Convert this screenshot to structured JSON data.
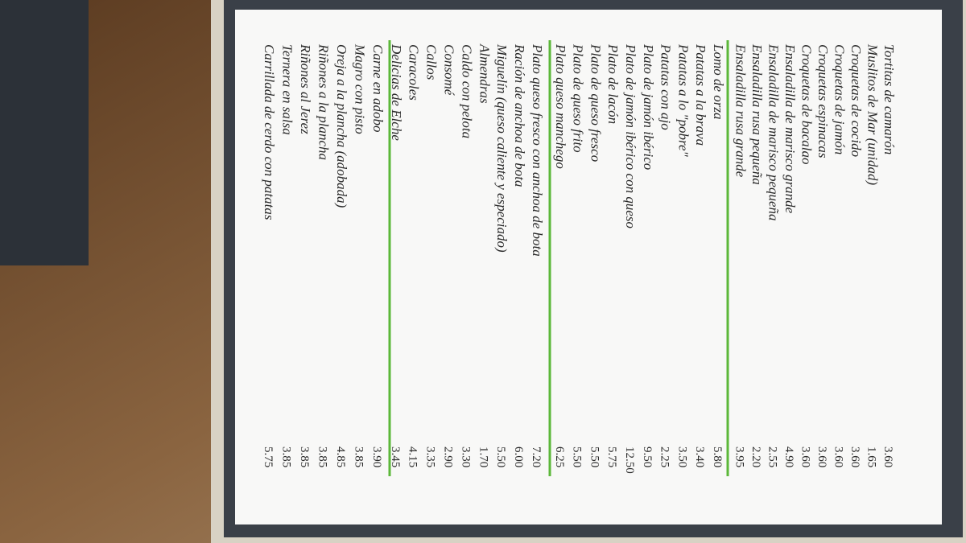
{
  "menu": {
    "sections": [
      {
        "items": [
          {
            "name": "Tortitas de camarón",
            "price": "3.60"
          },
          {
            "name": "Muslitos de Mar (unidad)",
            "price": "1.65"
          },
          {
            "name": "Croquetas de cocido",
            "price": "3.60"
          },
          {
            "name": "Croquetas de jamón",
            "price": "3.60"
          },
          {
            "name": "Croquetas espinacas",
            "price": "3.60"
          },
          {
            "name": "Croquetas de bacalao",
            "price": "3.60"
          },
          {
            "name": "Ensaladilla de marisco grande",
            "price": "4.90"
          },
          {
            "name": "Ensaladilla de marisco pequeña",
            "price": "2.55"
          },
          {
            "name": "Ensaladilla rusa pequeña",
            "price": "2.20"
          },
          {
            "name": "Ensaladilla rusa grande",
            "price": "3.95"
          }
        ]
      },
      {
        "items": [
          {
            "name": "Lomo de orza",
            "price": "5.80"
          },
          {
            "name": "Patatas a la brava",
            "price": "3.40"
          },
          {
            "name": "Patatas a lo \"pobre\"",
            "price": "3.50"
          },
          {
            "name": "Patatas con ajo",
            "price": "2.25"
          },
          {
            "name": "Plato de jamón ibérico",
            "price": "9.50"
          },
          {
            "name": "Plato de jamón ibérico con queso",
            "price": "12.50"
          },
          {
            "name": "Plato de lacón",
            "price": "5.75"
          },
          {
            "name": "Plato de queso fresco",
            "price": "5.50"
          },
          {
            "name": "Plato de queso frito",
            "price": "5.50"
          },
          {
            "name": "Plato queso manchego",
            "price": "6.25"
          }
        ]
      },
      {
        "items": [
          {
            "name": "Plato queso fresco con anchoa de bota",
            "price": "7.20"
          },
          {
            "name": "Ración de anchoa de bota",
            "price": "6.00"
          },
          {
            "name": "Miguelín (queso caliente y especiado)",
            "price": "5.50"
          },
          {
            "name": "Almendras",
            "price": "1.70"
          },
          {
            "name": "Caldo con pelota",
            "price": "3.30"
          },
          {
            "name": "Consomé",
            "price": "2.90"
          },
          {
            "name": "Callos",
            "price": "3.35"
          },
          {
            "name": "Caracoles",
            "price": "4.15"
          },
          {
            "name": "Delicias de Elche",
            "price": "3.45"
          }
        ]
      },
      {
        "items": [
          {
            "name": "Carne en adobo",
            "price": "3.90"
          },
          {
            "name": "Magro con pisto",
            "price": "3.85"
          },
          {
            "name": "Oreja a la plancha (adobada)",
            "price": "4.85"
          },
          {
            "name": "Riñones a la plancha",
            "price": "3.85"
          },
          {
            "name": "Riñones al Jerez",
            "price": "3.85"
          },
          {
            "name": "Ternera en salsa",
            "price": "3.85"
          },
          {
            "name": "Carrillada de cerdo con patatas",
            "price": "5.75"
          }
        ]
      }
    ]
  }
}
